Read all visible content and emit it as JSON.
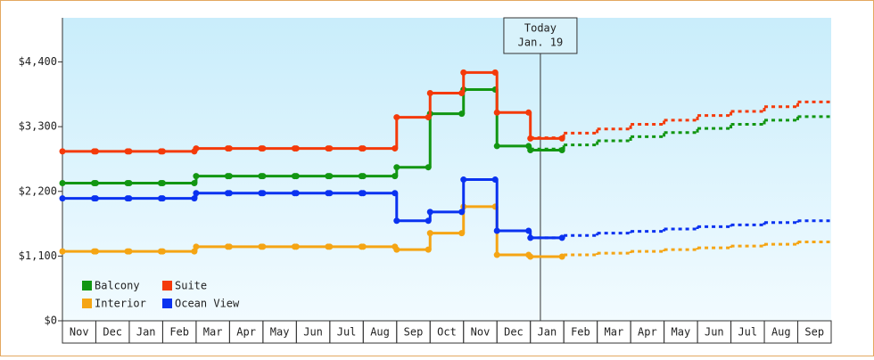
{
  "chart_data": {
    "type": "line",
    "step": true,
    "categories": [
      "Nov",
      "Dec",
      "Jan",
      "Feb",
      "Mar",
      "Apr",
      "May",
      "Jun",
      "Jul",
      "Aug",
      "Sep",
      "Oct",
      "Nov",
      "Dec",
      "Jan",
      "Feb",
      "Mar",
      "Apr",
      "May",
      "Jun",
      "Jul",
      "Aug",
      "Sep"
    ],
    "ylim": [
      0,
      5150
    ],
    "yticks": [
      {
        "value": 0,
        "label": "$0"
      },
      {
        "value": 1100,
        "label": "$1,100"
      },
      {
        "value": 2200,
        "label": "$2,200"
      },
      {
        "value": 3300,
        "label": "$3,300"
      },
      {
        "value": 4400,
        "label": "$4,400"
      }
    ],
    "annotation": [
      "Today",
      "Jan. 19"
    ],
    "series": [
      {
        "name": "Balcony",
        "color": "#129612",
        "values": [
          2340,
          2340,
          2340,
          2340,
          2460,
          2460,
          2460,
          2460,
          2460,
          2460,
          2610,
          3520,
          3930,
          2970,
          2900,
          null,
          null,
          null,
          null,
          null,
          null,
          null,
          null
        ],
        "forecast": [
          null,
          null,
          null,
          null,
          null,
          null,
          null,
          null,
          null,
          null,
          null,
          null,
          null,
          null,
          2920,
          2990,
          3060,
          3130,
          3200,
          3270,
          3340,
          3410,
          3470
        ]
      },
      {
        "name": "Suite",
        "color": "#f43a0a",
        "values": [
          2880,
          2880,
          2880,
          2880,
          2930,
          2930,
          2930,
          2930,
          2930,
          2930,
          3460,
          3870,
          4220,
          3540,
          3100,
          null,
          null,
          null,
          null,
          null,
          null,
          null,
          null
        ],
        "forecast": [
          null,
          null,
          null,
          null,
          null,
          null,
          null,
          null,
          null,
          null,
          null,
          null,
          null,
          null,
          3110,
          3190,
          3260,
          3340,
          3410,
          3490,
          3560,
          3640,
          3720
        ]
      },
      {
        "name": "Interior",
        "color": "#f5a514",
        "values": [
          1180,
          1180,
          1180,
          1180,
          1260,
          1260,
          1260,
          1260,
          1260,
          1260,
          1210,
          1490,
          1940,
          1120,
          1090,
          null,
          null,
          null,
          null,
          null,
          null,
          null,
          null
        ],
        "forecast": [
          null,
          null,
          null,
          null,
          null,
          null,
          null,
          null,
          null,
          null,
          null,
          null,
          null,
          null,
          1090,
          1120,
          1150,
          1180,
          1210,
          1240,
          1270,
          1300,
          1340
        ]
      },
      {
        "name": "Ocean View",
        "color": "#0a32f0",
        "values": [
          2080,
          2080,
          2080,
          2080,
          2170,
          2170,
          2170,
          2170,
          2170,
          2170,
          1700,
          1850,
          2400,
          1530,
          1410,
          null,
          null,
          null,
          null,
          null,
          null,
          null,
          null
        ],
        "forecast": [
          null,
          null,
          null,
          null,
          null,
          null,
          null,
          null,
          null,
          null,
          null,
          null,
          null,
          null,
          1410,
          1450,
          1490,
          1520,
          1560,
          1600,
          1630,
          1670,
          1700
        ]
      }
    ]
  }
}
